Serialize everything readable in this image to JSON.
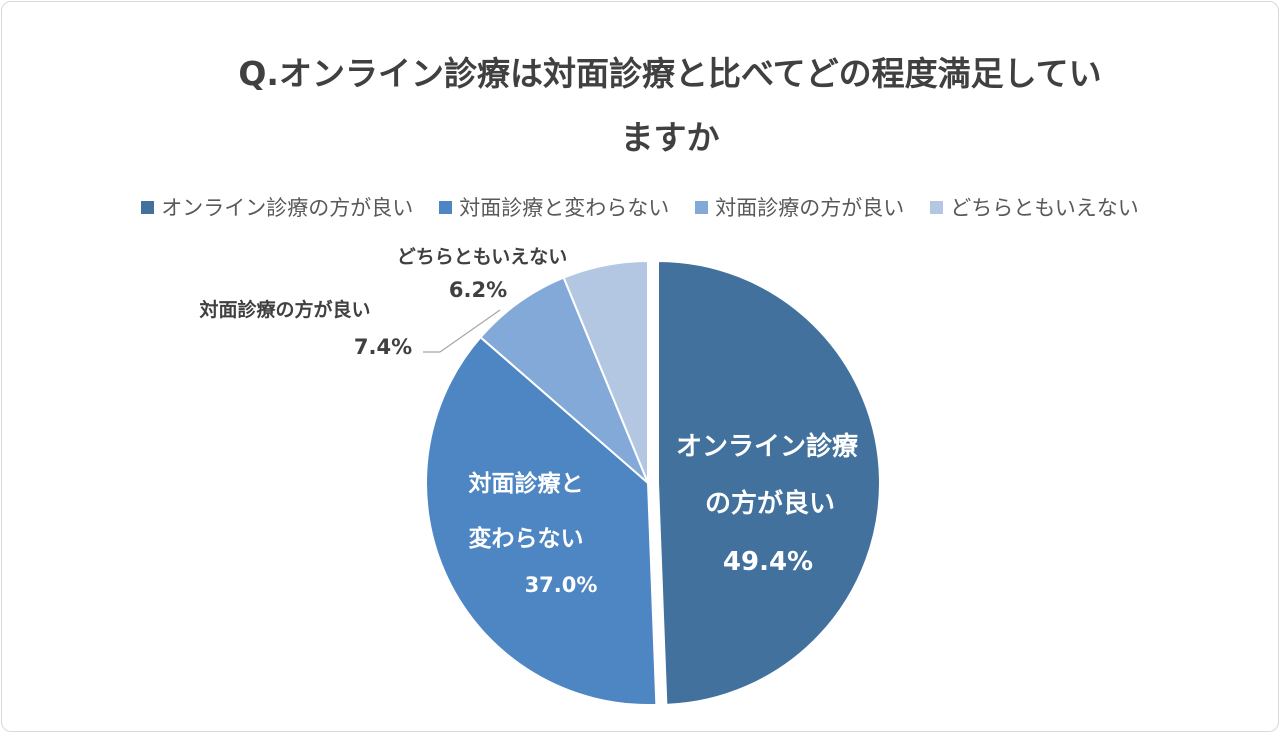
{
  "chart_data": {
    "type": "pie",
    "title_line1": "Q.オンライン診療は対面診療と比べてどの程度満足してい",
    "title_line2": "ますか",
    "categories": [
      "オンライン診療の方が良い",
      "対面診療と変わらない",
      "対面診療の方が良い",
      "どちらともいえない"
    ],
    "values": [
      49.4,
      37.0,
      7.4,
      6.2
    ],
    "value_labels": [
      "49.4%",
      "37.0%",
      "7.4%",
      "6.2%"
    ],
    "colors": [
      "#41719c",
      "#4e86c3",
      "#83a9d8",
      "#b3c6e2"
    ],
    "legend_position": "top",
    "slice_labels": [
      {
        "line1": "オンライン診療",
        "line2": "の方が良い",
        "pct": "49.4%"
      },
      {
        "line1": "対面診療と",
        "line2": "変わらない",
        "pct": "37.0%"
      },
      {
        "line1": "対面診療の方が良い",
        "pct": "7.4%"
      },
      {
        "line1": "どちらともいえない",
        "pct": "6.2%"
      }
    ]
  }
}
